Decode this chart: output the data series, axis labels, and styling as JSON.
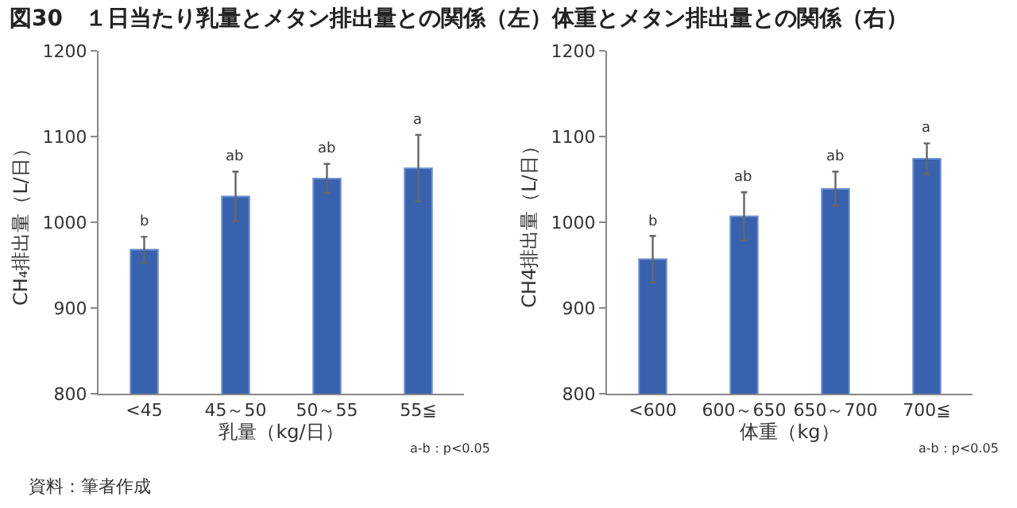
{
  "chart_data": [
    {
      "type": "bar",
      "title": "図30　１日当たり乳量とメタン排出量との関係（左）体重とメタン排出量との関係（右）",
      "xlabel": "乳量（kg/日）",
      "ylabel": "CH₄排出量（L/日）",
      "categories": [
        "<45",
        "45～50",
        "50～55",
        "55≦"
      ],
      "values": [
        968,
        1030,
        1051,
        1063
      ],
      "errors": [
        15,
        29,
        17,
        39
      ],
      "color": "#3862ae",
      "ylim": [
        800,
        1200
      ],
      "yticks": [
        800,
        900,
        1000,
        1100,
        1200
      ],
      "annotations": [
        {
          "text": "b",
          "x": "<45",
          "y": 983
        },
        {
          "text": "ab",
          "x": "45～50",
          "y": 1059
        },
        {
          "text": "ab",
          "x": "50～55",
          "y": 1068
        },
        {
          "text": "a",
          "x": "55≦",
          "y": 1102
        },
        "a-b：p<0.05",
        "資料：筆者作成"
      ]
    },
    {
      "type": "bar",
      "xlabel": "体重（kg）",
      "ylabel": "CH4排出量（L/日）",
      "categories": [
        "<600",
        "600～650",
        "650～700",
        "700≦"
      ],
      "values": [
        957,
        1007,
        1039,
        1074
      ],
      "errors": [
        27,
        28,
        20,
        18
      ],
      "color": "#3862ae",
      "ylim": [
        800,
        1200
      ],
      "yticks": [
        800,
        900,
        1000,
        1100,
        1200
      ],
      "annotations": [
        {
          "text": "b",
          "x": "<600",
          "y": 984
        },
        {
          "text": "ab",
          "x": "600～650",
          "y": 1035
        },
        {
          "text": "ab",
          "x": "650～700",
          "y": 1059
        },
        {
          "text": "a",
          "x": "700≦",
          "y": 1092
        },
        "a-b：p<0.05"
      ]
    }
  ]
}
